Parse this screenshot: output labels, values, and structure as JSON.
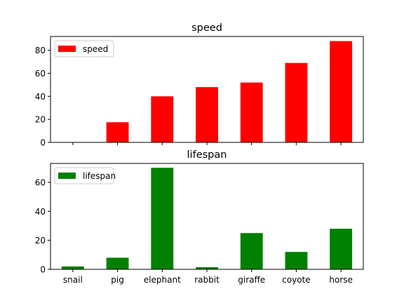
{
  "chart_data": [
    {
      "type": "bar",
      "title": "speed",
      "categories": [
        "snail",
        "pig",
        "elephant",
        "rabbit",
        "giraffe",
        "coyote",
        "horse"
      ],
      "series": [
        {
          "name": "speed",
          "values": [
            0.1,
            17.5,
            40,
            48,
            52,
            69,
            88
          ],
          "color": "#ff0000"
        }
      ],
      "ylim": [
        0,
        92
      ],
      "yticks": [
        0,
        20,
        40,
        60,
        80
      ],
      "xlabel": "",
      "ylabel": "",
      "show_xtick_labels": false,
      "grid": false,
      "legend": "top-left"
    },
    {
      "type": "bar",
      "title": "lifespan",
      "categories": [
        "snail",
        "pig",
        "elephant",
        "rabbit",
        "giraffe",
        "coyote",
        "horse"
      ],
      "series": [
        {
          "name": "lifespan",
          "values": [
            2,
            8,
            70,
            1.5,
            25,
            12,
            28
          ],
          "color": "#008000"
        }
      ],
      "ylim": [
        0,
        73
      ],
      "yticks": [
        0,
        20,
        40,
        60
      ],
      "xlabel": "",
      "ylabel": "",
      "show_xtick_labels": true,
      "grid": false,
      "legend": "top-left"
    }
  ]
}
